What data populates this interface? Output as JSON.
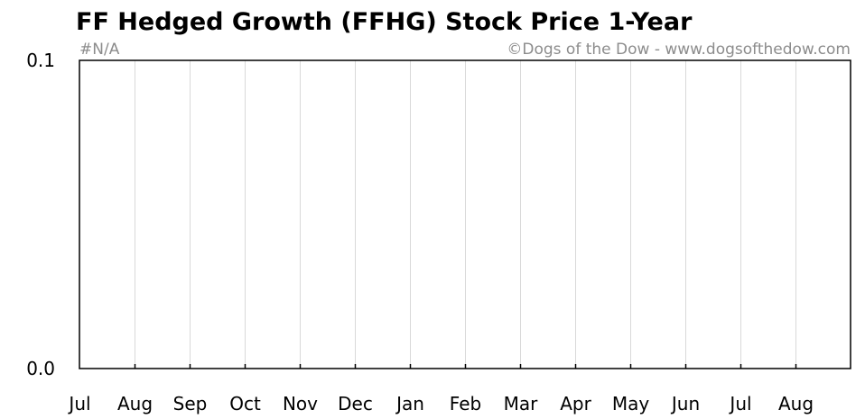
{
  "chart_data": {
    "type": "line",
    "title": "FF Hedged Growth (FFHG) Stock Price 1-Year",
    "subtitle": "#N/A",
    "credit": "©Dogs of the Dow - www.dogsofthedow.com",
    "xlabel": "",
    "ylabel": "",
    "categories": [
      "Jul",
      "Aug",
      "Sep",
      "Oct",
      "Nov",
      "Dec",
      "Jan",
      "Feb",
      "Mar",
      "Apr",
      "May",
      "Jun",
      "Jul",
      "Aug"
    ],
    "y_ticks": [
      "0.1",
      "0.0"
    ],
    "ylim": [
      0.0,
      0.1
    ],
    "series": [],
    "grid": "vertical",
    "grid_color": "#d9d9d9",
    "axis_color": "#000000",
    "title_color": "#000000",
    "credit_color": "#8c8c8c"
  }
}
